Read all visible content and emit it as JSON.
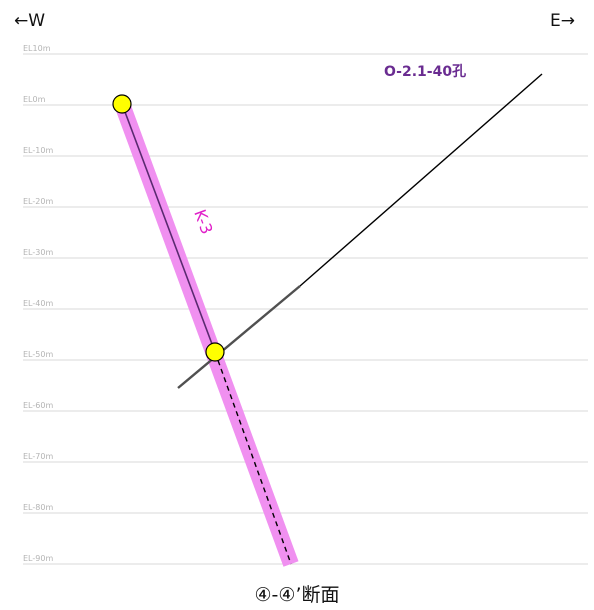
{
  "direction": {
    "west": "←W",
    "east": "E→"
  },
  "elevation_labels": [
    "EL10m",
    "EL0m",
    "EL-10m",
    "EL-20m",
    "EL-30m",
    "EL-40m",
    "EL-50m",
    "EL-60m",
    "EL-70m",
    "EL-80m",
    "EL-90m"
  ],
  "borehole": {
    "label": "O-2.1-40孔"
  },
  "fault": {
    "label": "K-3"
  },
  "section_title": "④-④’断面",
  "colors": {
    "grid": "#d8d8d8",
    "fault_band": "#f090f0",
    "fault_line": "#5a2a70",
    "borehole_line": "#000000",
    "marker_fill": "#ffff00",
    "hole_label": "#6a2c91",
    "fault_label": "#e020c8"
  }
}
